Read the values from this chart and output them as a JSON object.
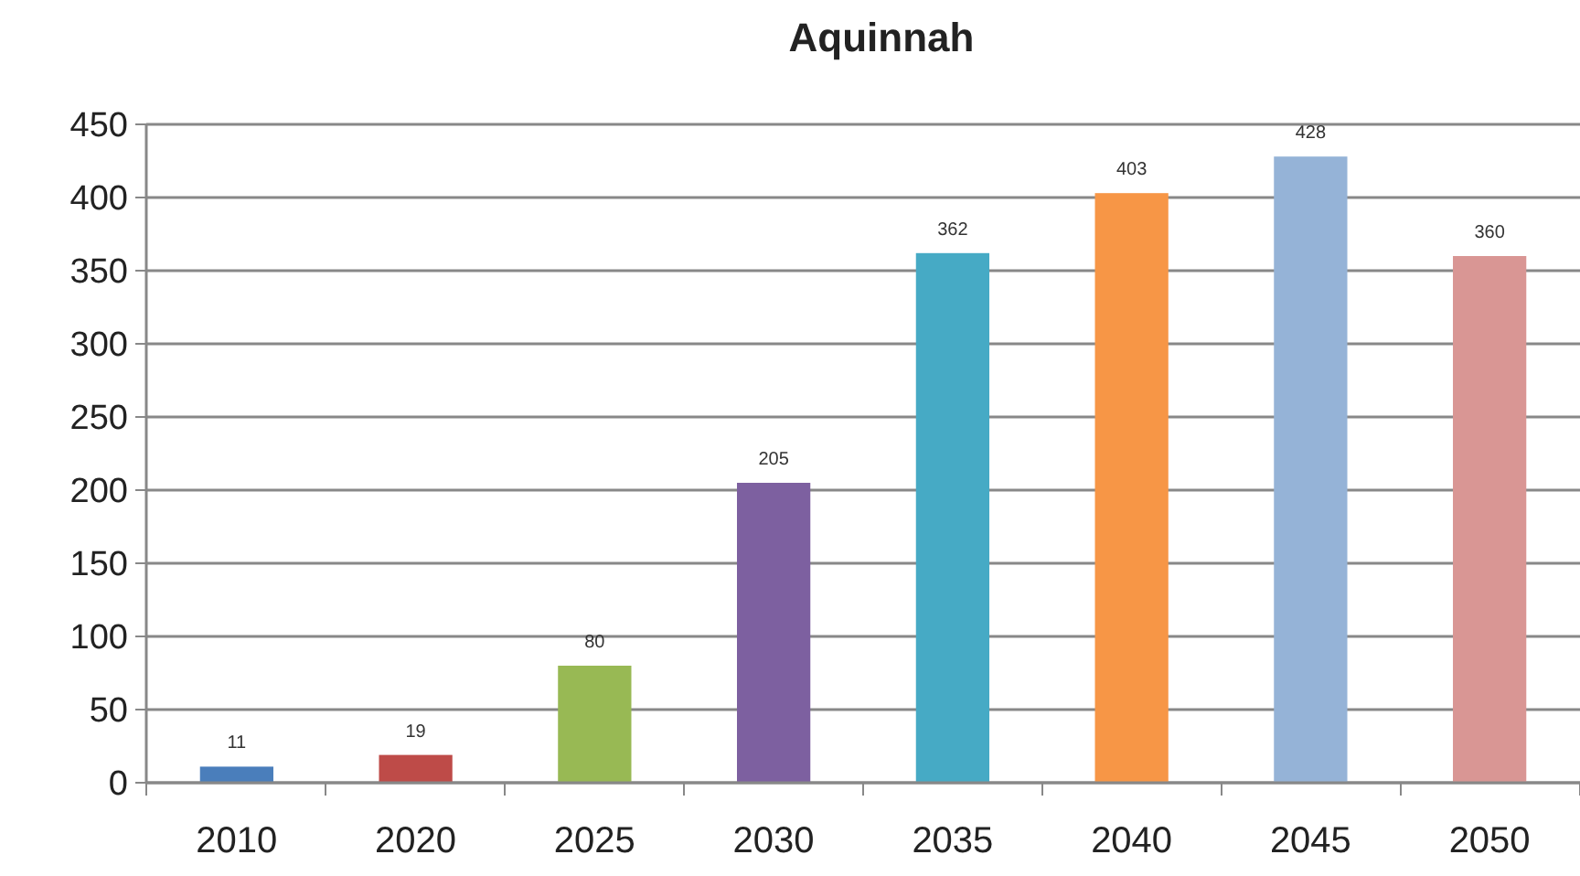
{
  "chart_data": {
    "type": "bar",
    "title": "Aquinnah",
    "categories": [
      "2010",
      "2020",
      "2025",
      "2030",
      "2035",
      "2040",
      "2045",
      "2050"
    ],
    "values": [
      11,
      19,
      80,
      205,
      362,
      403,
      428,
      360
    ],
    "colors": [
      "#4a7ebb",
      "#be4b48",
      "#98b954",
      "#7d60a0",
      "#46aac5",
      "#f79646",
      "#95b3d7",
      "#d99694"
    ],
    "ylim": [
      0,
      450
    ],
    "yticks": [
      0,
      50,
      100,
      150,
      200,
      250,
      300,
      350,
      400,
      450
    ],
    "grid": "y",
    "data_labels": true
  }
}
